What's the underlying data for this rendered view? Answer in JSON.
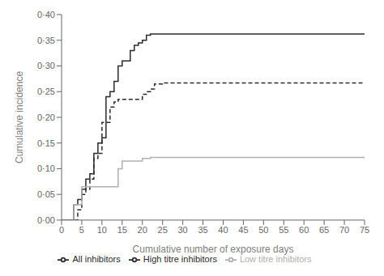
{
  "chart_data": {
    "type": "step",
    "xlabel": "Cumulative number of exposure days",
    "ylabel": "Cumulative incidence",
    "xlim": [
      0,
      75
    ],
    "ylim": [
      0.0,
      0.4
    ],
    "xticks": [
      0,
      5,
      10,
      15,
      20,
      25,
      30,
      35,
      40,
      45,
      50,
      55,
      60,
      65,
      70,
      75
    ],
    "yticks": [
      {
        "value": 0.0,
        "label": "0·00"
      },
      {
        "value": 0.05,
        "label": "0·05"
      },
      {
        "value": 0.1,
        "label": "0·10"
      },
      {
        "value": 0.15,
        "label": "0·15"
      },
      {
        "value": 0.2,
        "label": "0·20"
      },
      {
        "value": 0.25,
        "label": "0·25"
      },
      {
        "value": 0.3,
        "label": "0·30"
      },
      {
        "value": 0.35,
        "label": "0·35"
      },
      {
        "value": 0.4,
        "label": "0·40"
      }
    ],
    "grid": false,
    "legend": "bottom",
    "series": [
      {
        "name": "All inhibitors",
        "color": "#2b2b2b",
        "line_style": "solid",
        "x": [
          0,
          3,
          4,
          5,
          6,
          7,
          8,
          9,
          10,
          11,
          12,
          13,
          14,
          15,
          17,
          18,
          19,
          20,
          21,
          22,
          23,
          25,
          27,
          28,
          30,
          35,
          75
        ],
        "values": [
          0.0,
          0.03,
          0.04,
          0.06,
          0.08,
          0.09,
          0.13,
          0.15,
          0.16,
          0.24,
          0.25,
          0.27,
          0.3,
          0.31,
          0.33,
          0.34,
          0.345,
          0.35,
          0.36,
          0.362,
          0.362,
          0.362,
          0.362,
          0.362,
          0.362,
          0.362,
          0.362
        ]
      },
      {
        "name": "High titre inhibitors",
        "color": "#2b2b2b",
        "line_style": "dashed",
        "x": [
          0,
          4,
          5,
          6,
          7,
          8,
          9,
          10,
          12,
          13,
          14,
          15,
          20,
          21,
          22,
          23,
          25,
          28,
          30,
          35,
          75
        ],
        "values": [
          0.0,
          0.02,
          0.05,
          0.06,
          0.08,
          0.12,
          0.13,
          0.19,
          0.22,
          0.23,
          0.235,
          0.235,
          0.245,
          0.25,
          0.255,
          0.265,
          0.267,
          0.267,
          0.267,
          0.267,
          0.267
        ]
      },
      {
        "name": "Low titre inhibitors",
        "color": "#b0b0b0",
        "line_style": "solid",
        "x": [
          0,
          3,
          5,
          14,
          15,
          20,
          22,
          27,
          75
        ],
        "values": [
          0.0,
          0.03,
          0.065,
          0.1,
          0.115,
          0.12,
          0.122,
          0.122,
          0.122
        ]
      }
    ]
  }
}
